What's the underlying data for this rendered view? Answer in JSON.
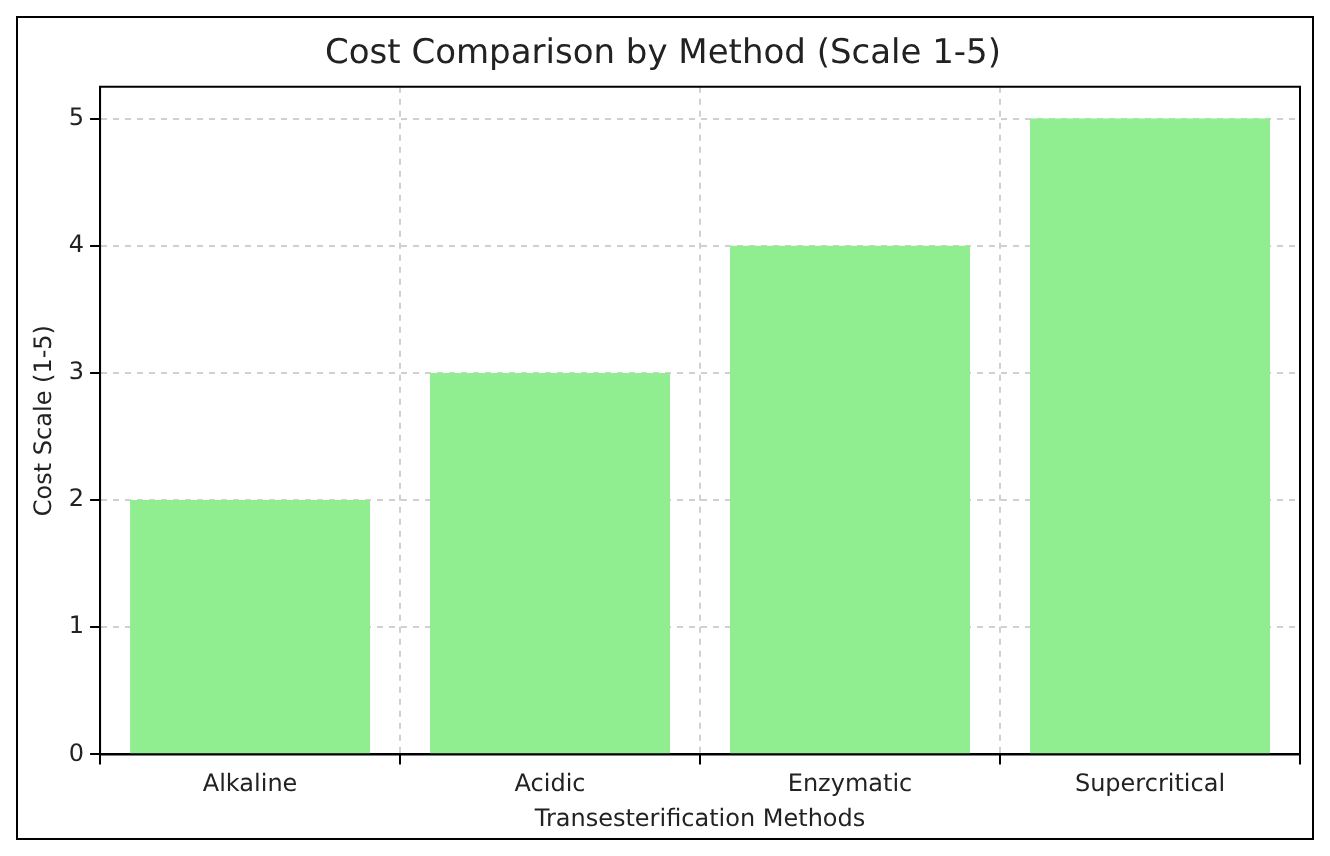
{
  "chart_data": {
    "type": "bar",
    "title": "Cost Comparison by Method (Scale 1-5)",
    "xlabel": "Transesterification Methods",
    "ylabel": "Cost Scale (1-5)",
    "categories": [
      "Alkaline",
      "Acidic",
      "Enzymatic",
      "Supercritical"
    ],
    "values": [
      2,
      3,
      4,
      5
    ],
    "color": "#90ee90",
    "ylim": [
      0,
      5.25
    ],
    "yticks": [
      0,
      1,
      2,
      3,
      4,
      5
    ],
    "grid": true
  }
}
